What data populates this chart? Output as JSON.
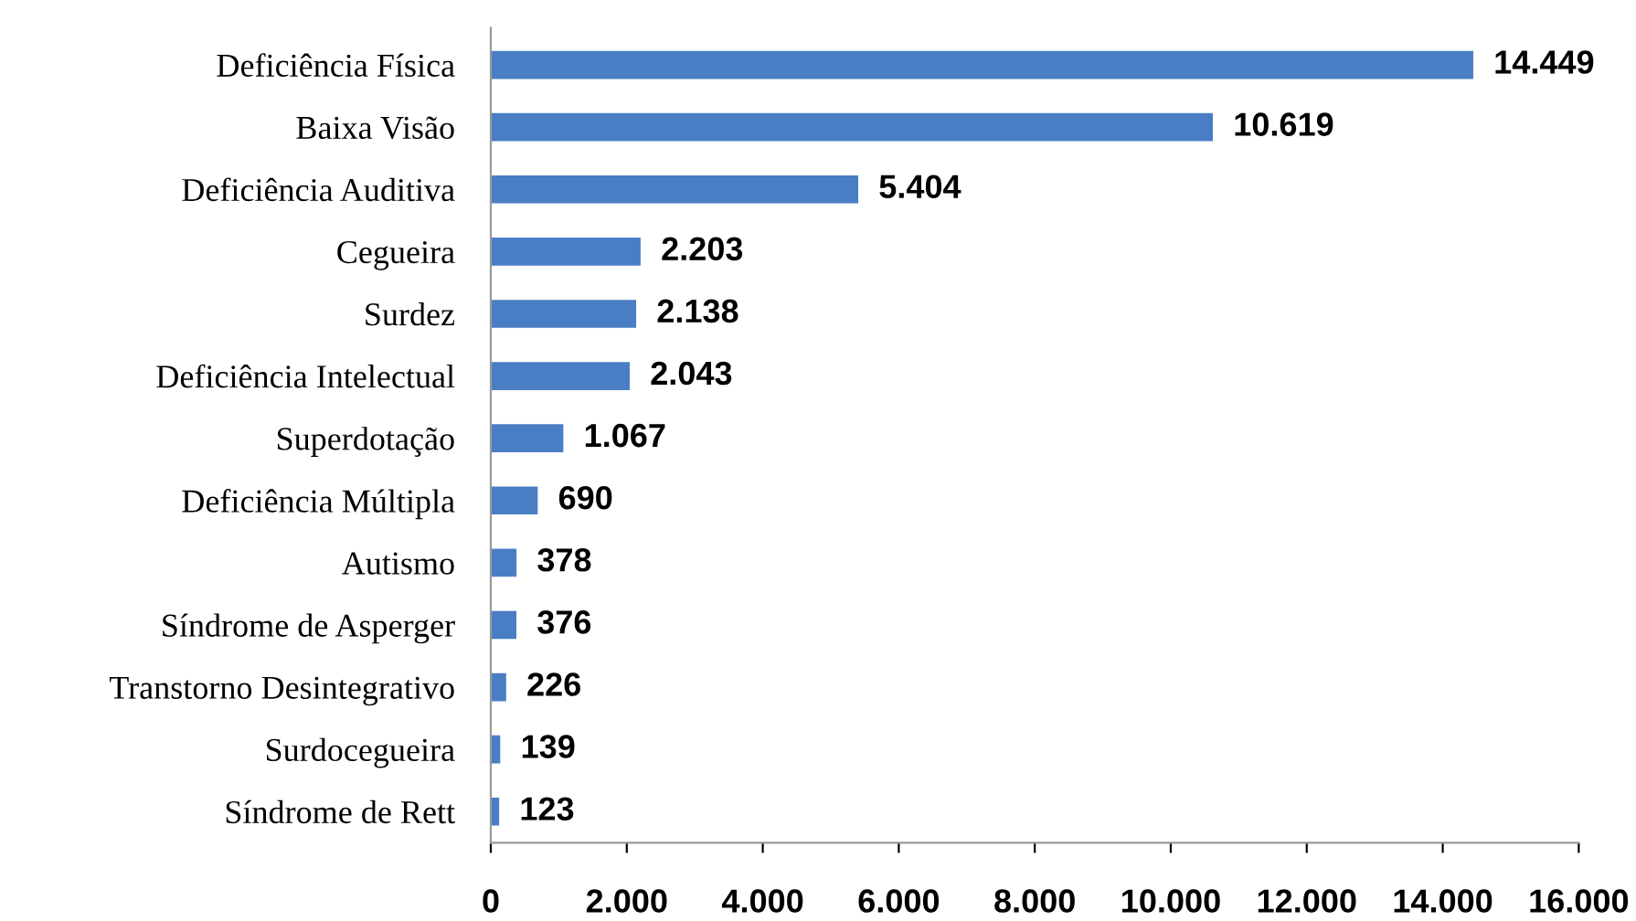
{
  "chart_data": {
    "type": "bar",
    "orientation": "horizontal",
    "categories": [
      "Deficiência Física",
      "Baixa Visão",
      "Deficiência Auditiva",
      "Cegueira",
      "Surdez",
      "Deficiência Intelectual",
      "Superdotação",
      "Deficiência Múltipla",
      "Autismo",
      "Síndrome de Asperger",
      "Transtorno Desintegrativo",
      "Surdocegueira",
      "Síndrome de Rett"
    ],
    "values": [
      14449,
      10619,
      5404,
      2203,
      2138,
      2043,
      1067,
      690,
      378,
      376,
      226,
      139,
      123
    ],
    "value_labels": [
      "14.449",
      "10.619",
      "5.404",
      "2.203",
      "2.138",
      "2.043",
      "1.067",
      "690",
      "378",
      "376",
      "226",
      "139",
      "123"
    ],
    "color": "#4a7ec4",
    "xlim": [
      0,
      16000
    ],
    "xticks": [
      0,
      {
        "value": 2000,
        "label": "2.000"
      },
      {
        "value": 4000,
        "label": "4.000"
      },
      {
        "value": 6000,
        "label": "6.000"
      },
      {
        "value": 8000,
        "label": "8.000"
      },
      {
        "value": 10000,
        "label": "10.000"
      },
      {
        "value": 12000,
        "label": "12.000"
      },
      {
        "value": 14000,
        "label": "14.000"
      },
      {
        "value": 16000,
        "label": "16.000"
      }
    ],
    "grid": false,
    "legend": false
  }
}
